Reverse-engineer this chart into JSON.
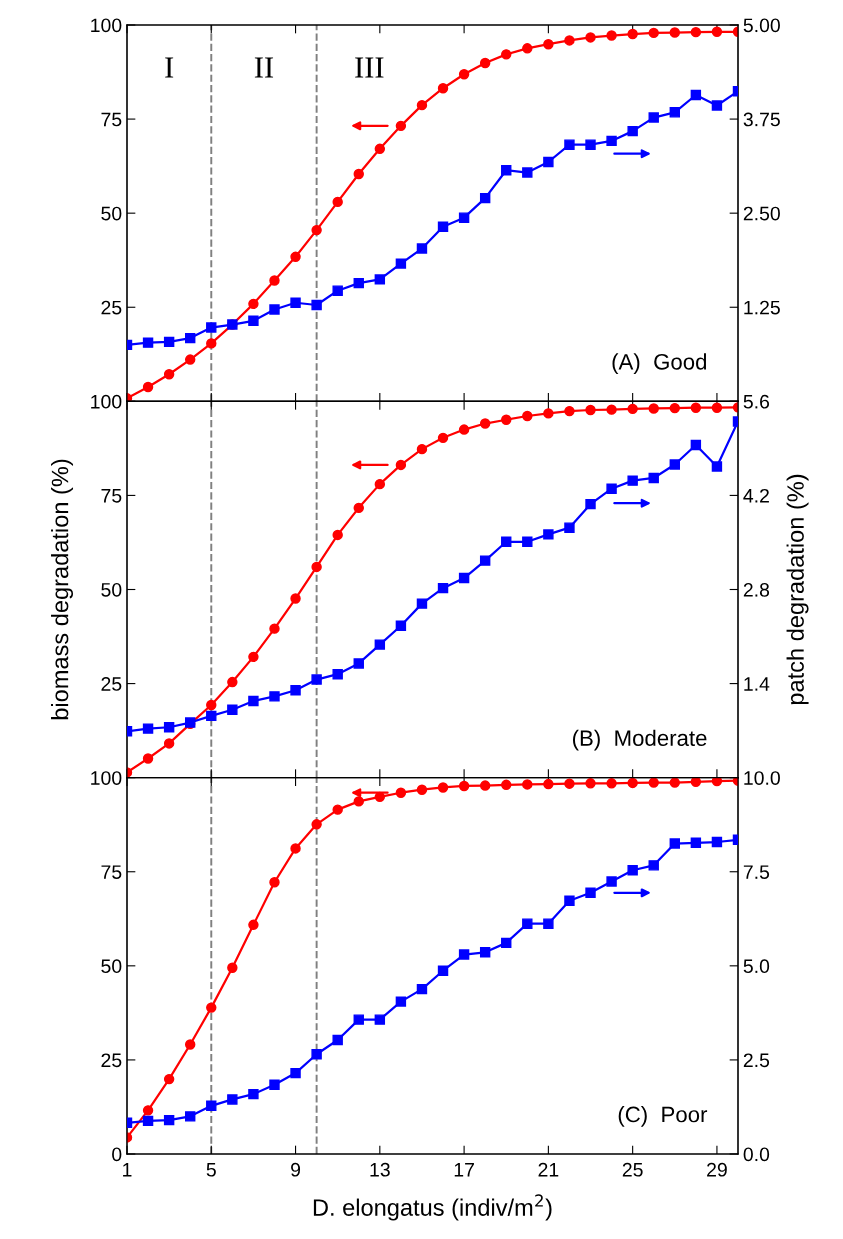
{
  "chart_data": [
    {
      "type": "line",
      "x": [
        1,
        2,
        3,
        4,
        5,
        6,
        7,
        8,
        9,
        10,
        11,
        12,
        13,
        14,
        15,
        16,
        17,
        18,
        19,
        20,
        21,
        22,
        23,
        24,
        25,
        26,
        27,
        28,
        29,
        30
      ],
      "xlim": [
        1,
        30
      ],
      "xticks": [
        1,
        5,
        9,
        13,
        17,
        21,
        25,
        29
      ],
      "ylim": [
        0,
        100
      ],
      "yticks": [
        {
          "value": 0,
          "label": null
        },
        25,
        50,
        75,
        100
      ],
      "y2lim": [
        0,
        5
      ],
      "y2ticks": [
        {
          "value": 0,
          "label": null
        },
        {
          "value": 1.25,
          "label": "1.25"
        },
        {
          "value": 2.5,
          "label": "2.50"
        },
        {
          "value": 3.75,
          "label": "3.75"
        },
        {
          "value": 5,
          "label": "5.00"
        }
      ],
      "tick_labels": "y",
      "grid": false,
      "legend": false,
      "series": [
        {
          "color": "#ff0000",
          "marker": "circle",
          "values": [
            0.8,
            3.8,
            7.2,
            11.1,
            15.4,
            20.4,
            25.9,
            32.1,
            38.4,
            45.5,
            53.0,
            60.4,
            67.1,
            73.2,
            78.7,
            83.2,
            86.9,
            89.9,
            92.2,
            93.8,
            94.9,
            95.9,
            96.7,
            97.2,
            97.6,
            97.9,
            98.0,
            98.1,
            98.2,
            98.2
          ]
        },
        {
          "color": "#0000ff",
          "marker": "square",
          "axis": "y2",
          "values": [
            0.75,
            0.78,
            0.79,
            0.84,
            0.98,
            1.02,
            1.07,
            1.22,
            1.31,
            1.28,
            1.47,
            1.57,
            1.62,
            1.83,
            2.03,
            2.32,
            2.44,
            2.7,
            3.07,
            3.04,
            3.18,
            3.41,
            3.41,
            3.46,
            3.59,
            3.77,
            3.84,
            4.07,
            3.93,
            4.12
          ]
        }
      ],
      "ref_lines": [
        {
          "axis": "x",
          "value": 5,
          "color": "#808080",
          "line_style": "dashed"
        },
        {
          "axis": "x",
          "value": 10,
          "color": "#808080",
          "line_style": "dashed"
        }
      ],
      "annotations": [
        "I",
        "II",
        "III",
        "(A)  Good"
      ]
    },
    {
      "type": "line",
      "x": [
        1,
        2,
        3,
        4,
        5,
        6,
        7,
        8,
        9,
        10,
        11,
        12,
        13,
        14,
        15,
        16,
        17,
        18,
        19,
        20,
        21,
        22,
        23,
        24,
        25,
        26,
        27,
        28,
        29,
        30
      ],
      "xlim": [
        1,
        30
      ],
      "xticks": [
        1,
        5,
        9,
        13,
        17,
        21,
        25,
        29
      ],
      "ylim": [
        0,
        100
      ],
      "yticks": [
        {
          "value": 0,
          "label": null
        },
        25,
        50,
        75,
        100
      ],
      "y2lim": [
        0,
        5.6
      ],
      "y2ticks": [
        {
          "value": 0,
          "label": null
        },
        1.4,
        2.8,
        4.2,
        5.6
      ],
      "tick_labels": "y",
      "grid": false,
      "legend": false,
      "ylabel": "biomass degradation (%)",
      "y2label": "patch degradation (%)",
      "series": [
        {
          "color": "#ff0000",
          "marker": "circle",
          "values": [
            1.4,
            5.1,
            9.1,
            14.3,
            19.3,
            25.4,
            32.1,
            39.6,
            47.6,
            56.0,
            64.5,
            71.7,
            78.0,
            83.1,
            87.3,
            90.3,
            92.5,
            94.1,
            95.1,
            96.1,
            96.8,
            97.4,
            97.7,
            97.8,
            98.0,
            98.1,
            98.2,
            98.3,
            98.3,
            98.4
          ]
        },
        {
          "color": "#0000ff",
          "marker": "square",
          "axis": "y2",
          "values": [
            0.69,
            0.73,
            0.75,
            0.82,
            0.92,
            1.01,
            1.14,
            1.21,
            1.3,
            1.46,
            1.54,
            1.7,
            1.98,
            2.26,
            2.59,
            2.82,
            2.97,
            3.23,
            3.51,
            3.51,
            3.62,
            3.72,
            4.07,
            4.3,
            4.42,
            4.46,
            4.66,
            4.95,
            4.63,
            5.3
          ]
        }
      ],
      "ref_lines": [
        {
          "axis": "x",
          "value": 5,
          "color": "#808080",
          "line_style": "dashed"
        },
        {
          "axis": "x",
          "value": 10,
          "color": "#808080",
          "line_style": "dashed"
        }
      ],
      "annotations": [
        "(B)  Moderate"
      ]
    },
    {
      "type": "line",
      "x": [
        1,
        2,
        3,
        4,
        5,
        6,
        7,
        8,
        9,
        10,
        11,
        12,
        13,
        14,
        15,
        16,
        17,
        18,
        19,
        20,
        21,
        22,
        23,
        24,
        25,
        26,
        27,
        28,
        29,
        30
      ],
      "xlim": [
        1,
        30
      ],
      "xticks": [
        1,
        5,
        9,
        13,
        17,
        21,
        25,
        29
      ],
      "ylim": [
        0,
        100
      ],
      "yticks": [
        0,
        25,
        50,
        75,
        100
      ],
      "y2lim": [
        0,
        10
      ],
      "y2ticks": [
        {
          "value": 0,
          "label": "0.0"
        },
        {
          "value": 2.5,
          "label": "2.5"
        },
        {
          "value": 5,
          "label": "5.0"
        },
        {
          "value": 7.5,
          "label": "7.5"
        },
        {
          "value": 10,
          "label": "10.0"
        }
      ],
      "grid": false,
      "legend": false,
      "xlabel": "D. elongatus (indiv/m$^{2}$)",
      "series": [
        {
          "color": "#ff0000",
          "marker": "circle",
          "values": [
            4.4,
            11.6,
            19.9,
            29.1,
            38.9,
            49.5,
            60.9,
            72.2,
            81.2,
            87.6,
            91.5,
            93.7,
            94.9,
            96.0,
            96.8,
            97.4,
            97.8,
            97.9,
            98.1,
            98.2,
            98.3,
            98.4,
            98.5,
            98.5,
            98.6,
            98.7,
            98.7,
            98.9,
            99.1,
            99.2
          ]
        },
        {
          "color": "#0000ff",
          "marker": "square",
          "axis": "y2",
          "values": [
            0.83,
            0.88,
            0.9,
            1.0,
            1.28,
            1.45,
            1.59,
            1.84,
            2.15,
            2.65,
            3.03,
            3.57,
            3.57,
            4.05,
            4.38,
            4.87,
            5.3,
            5.36,
            5.61,
            6.12,
            6.12,
            6.73,
            6.94,
            7.24,
            7.54,
            7.67,
            8.25,
            8.27,
            8.29,
            8.35
          ]
        }
      ],
      "ref_lines": [
        {
          "axis": "x",
          "value": 5,
          "color": "#808080",
          "line_style": "dashed"
        },
        {
          "axis": "x",
          "value": 10,
          "color": "#808080",
          "line_style": "dashed"
        }
      ],
      "annotations": [
        "(C)  Poor"
      ]
    }
  ]
}
